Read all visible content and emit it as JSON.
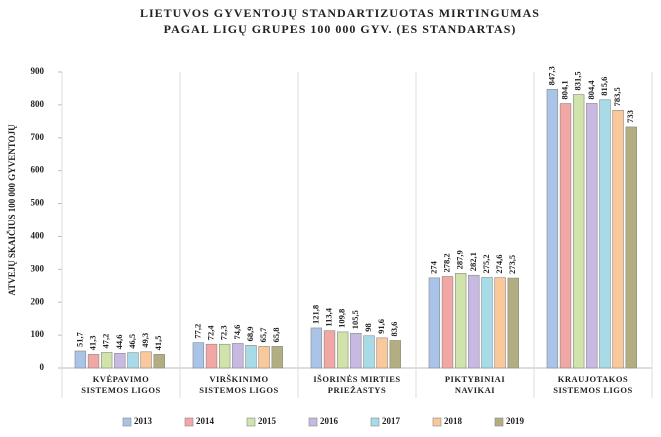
{
  "chart_data": {
    "type": "bar",
    "title": [
      "LIETUVOS GYVENTOJŲ STANDARTIZUOTAS MIRTINGUMAS",
      "PAGAL LIGŲ GRUPES 100 000 GYV. (ES STANDARTAS)"
    ],
    "y_label": "ATVEJŲ SKAIČIUS 100 000 GYVENTOJŲ",
    "categories": [
      [
        "KVĖPAVIMO",
        "SISTEMOS LIGOS"
      ],
      [
        "VIRŠKINIMO",
        "SISTEMOS LIGOS"
      ],
      [
        "IŠORINĖS MIRTIES",
        "PRIEŽASTYS"
      ],
      [
        "PIKTYBINIAI",
        "NAVIKAI"
      ],
      [
        "KRAUJOTAKOS",
        "SISTEMOS LIGOS"
      ]
    ],
    "series": [
      {
        "name": "2013",
        "color": "#a9c4e8",
        "values": [
          51.7,
          77.2,
          121.8,
          274,
          847.3
        ],
        "value_labels": [
          "51,7",
          "77,2",
          "121,8",
          "274",
          "847,3"
        ]
      },
      {
        "name": "2014",
        "color": "#f2a7a5",
        "values": [
          41.3,
          72.4,
          113.4,
          278.2,
          804.1
        ],
        "value_labels": [
          "41,3",
          "72,4",
          "113,4",
          "278,2",
          "804,1"
        ]
      },
      {
        "name": "2015",
        "color": "#cfe3ab",
        "values": [
          47.2,
          72.3,
          109.8,
          287.9,
          831.5
        ],
        "value_labels": [
          "47,2",
          "72,3",
          "109,8",
          "287,9",
          "831,5"
        ]
      },
      {
        "name": "2016",
        "color": "#c8b9e2",
        "values": [
          44.6,
          74.6,
          105.5,
          282.1,
          804.4
        ],
        "value_labels": [
          "44,6",
          "74,6",
          "105,5",
          "282,1",
          "804,4"
        ]
      },
      {
        "name": "2017",
        "color": "#a8dbe8",
        "values": [
          46.5,
          68.9,
          98,
          275.2,
          815.6
        ],
        "value_labels": [
          "46,5",
          "68,9",
          "98",
          "275,2",
          "815,6"
        ]
      },
      {
        "name": "2018",
        "color": "#f9c89b",
        "values": [
          49.3,
          65.7,
          91.6,
          274.6,
          783.5
        ],
        "value_labels": [
          "49,3",
          "65,7",
          "91,6",
          "274,6",
          "783,5"
        ]
      },
      {
        "name": "2019",
        "color": "#b3ae82",
        "values": [
          41.5,
          65.8,
          83.6,
          273.5,
          733
        ],
        "value_labels": [
          "41,5",
          "65,8",
          "83,6",
          "273,5",
          "733"
        ]
      }
    ],
    "ylim": [
      0,
      900
    ],
    "yticks": [
      0,
      100,
      200,
      300,
      400,
      500,
      600,
      700,
      800,
      900
    ],
    "grid": false,
    "legend": "bottom"
  }
}
